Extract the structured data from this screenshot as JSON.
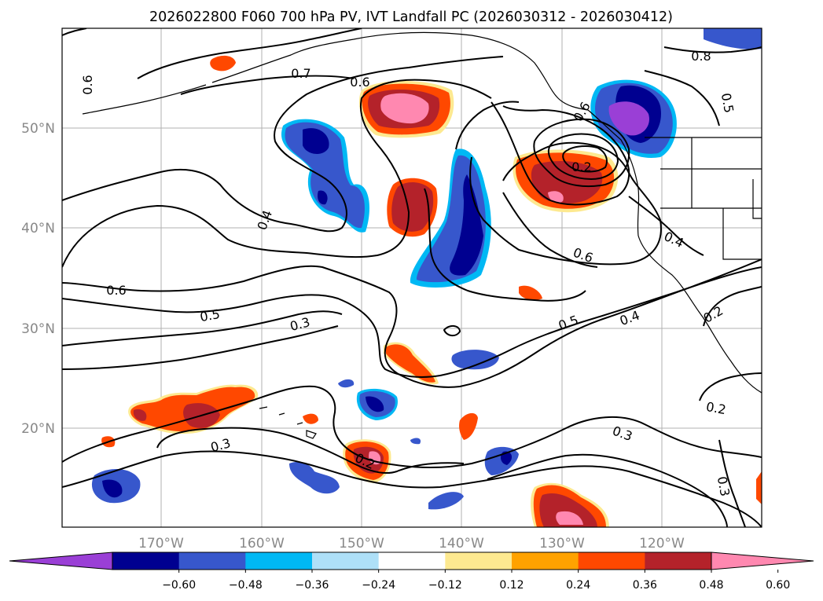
{
  "title": "2026022800 F060 700 hPa PV, IVT Landfall PC (2026030312 - 2026030412)",
  "lat_labels": [
    "50°N",
    "40°N",
    "30°N",
    "20°N"
  ],
  "lon_labels": [
    "170°W",
    "160°W",
    "150°W",
    "140°W",
    "130°W",
    "120°W"
  ],
  "colorbar": {
    "ticks": [
      "−0.60",
      "−0.48",
      "−0.36",
      "−0.24",
      "−0.12",
      "0.12",
      "0.24",
      "0.36",
      "0.48",
      "0.60"
    ],
    "colors": [
      "#9a3fd6",
      "#000090",
      "#3757cc",
      "#00b8f4",
      "#aee0f8",
      "#ffffff",
      "#fde990",
      "#ffa200",
      "#ff4800",
      "#b4222a",
      "#ff88b0"
    ]
  },
  "contour_labels": [
    "0.6",
    "0.7",
    "0.6",
    "0.8",
    "0.5",
    "0.6",
    "0.4",
    "0.6",
    "0.2",
    "0.6",
    "0.4",
    "0.5",
    "0.3",
    "0.5",
    "0.4",
    "0.2",
    "0.3",
    "0.2",
    "0.3",
    "0.3",
    "0.2"
  ]
}
